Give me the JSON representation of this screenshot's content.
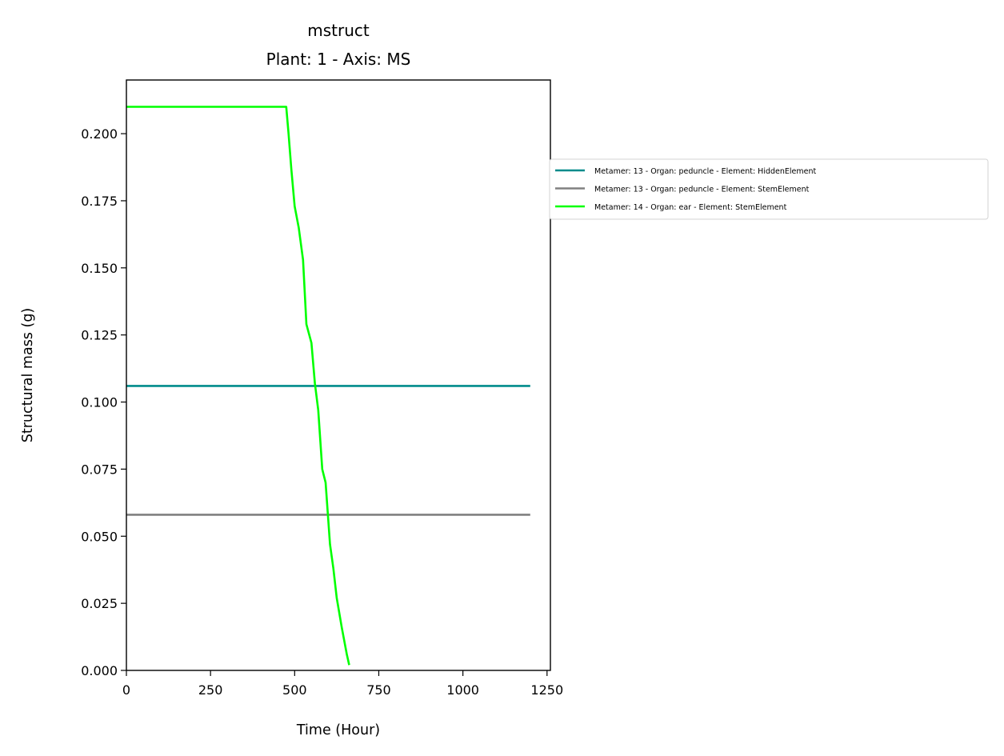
{
  "chart_data": {
    "type": "line",
    "title": "mstruct",
    "subtitle": "Plant: 1 - Axis: MS",
    "xlabel": "Time (Hour)",
    "ylabel": "Structural mass (g)",
    "xlim": [
      0,
      1260
    ],
    "ylim": [
      0,
      0.22
    ],
    "x_ticks": [
      0,
      250,
      500,
      750,
      1000,
      1250
    ],
    "x_tick_labels": [
      "0",
      "250",
      "500",
      "750",
      "1000",
      "1250"
    ],
    "y_ticks": [
      0.0,
      0.025,
      0.05,
      0.075,
      0.1,
      0.125,
      0.15,
      0.175,
      0.2
    ],
    "y_tick_labels": [
      "0.000",
      "0.025",
      "0.050",
      "0.075",
      "0.100",
      "0.125",
      "0.150",
      "0.175",
      "0.200"
    ],
    "grid": false,
    "legend_placement": "outside right, upper",
    "series": [
      {
        "name": "Metamer: 13 - Organ: peduncle - Element: HiddenElement",
        "color": "#008b8b",
        "x": [
          0,
          1200
        ],
        "y": [
          0.106,
          0.106
        ]
      },
      {
        "name": "Metamer: 13 - Organ: peduncle - Element: StemElement",
        "color": "#808080",
        "x": [
          0,
          1200
        ],
        "y": [
          0.058,
          0.058
        ]
      },
      {
        "name": "Metamer: 14 - Organ: ear - Element: StemElement",
        "color": "#00ff00",
        "x": [
          0,
          475,
          482,
          490,
          500,
          512,
          525,
          535,
          550,
          560,
          570,
          582,
          592,
          605,
          615,
          625,
          640,
          655,
          662
        ],
        "y": [
          0.21,
          0.21,
          0.2,
          0.187,
          0.173,
          0.165,
          0.153,
          0.129,
          0.122,
          0.107,
          0.097,
          0.075,
          0.07,
          0.047,
          0.038,
          0.027,
          0.016,
          0.006,
          0.002
        ]
      }
    ]
  }
}
